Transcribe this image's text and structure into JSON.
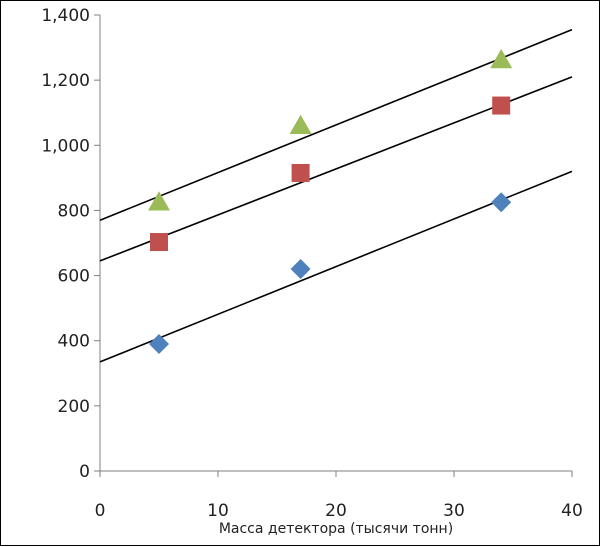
{
  "chart_data": {
    "type": "scatter",
    "title": "",
    "xlabel": "Масса детектора (тысячи тонн)",
    "ylabel": "",
    "xlim": [
      0,
      40
    ],
    "ylim": [
      0,
      1400
    ],
    "xticks": [
      0,
      10,
      20,
      30,
      40
    ],
    "yticks": [
      0,
      200,
      400,
      600,
      800,
      1000,
      1200,
      1400
    ],
    "xtick_labels": [
      "0",
      "10",
      "20",
      "30",
      "40"
    ],
    "ytick_labels": [
      "0",
      "200",
      "400",
      "600",
      "800",
      "1,000",
      "1,200",
      "1,400"
    ],
    "grid": false,
    "legend": "none",
    "series": [
      {
        "marker": "diamond",
        "color": "#4f81bd",
        "x": [
          5,
          17,
          34
        ],
        "y": [
          390,
          620,
          825
        ],
        "trendline": [
          [
            0,
            335
          ],
          [
            40,
            920
          ]
        ]
      },
      {
        "marker": "square",
        "color": "#c0504d",
        "x": [
          5,
          17,
          34
        ],
        "y": [
          703,
          915,
          1122
        ],
        "trendline": [
          [
            0,
            645
          ],
          [
            40,
            1210
          ]
        ]
      },
      {
        "marker": "triangle",
        "color": "#9bbb59",
        "x": [
          5,
          17,
          34
        ],
        "y": [
          825,
          1060,
          1262
        ],
        "trendline": [
          [
            0,
            770
          ],
          [
            40,
            1355
          ]
        ]
      }
    ]
  }
}
